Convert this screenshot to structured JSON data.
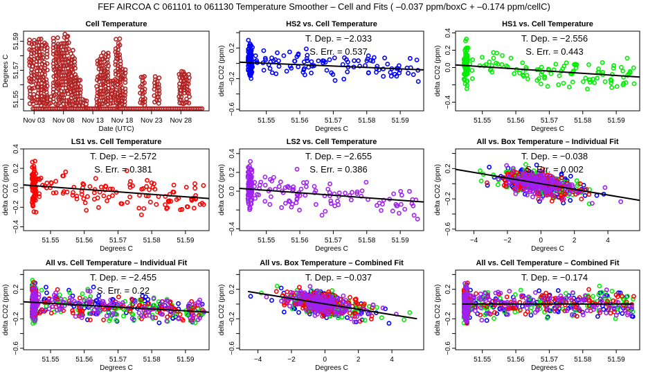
{
  "figure_title": "FEF   AIRCOA C   061101 to 061130   Temperature Smoother – Cell and Fits ( –0.037  ppm/boxC +  –0.174  ppm/cellC)",
  "colors": {
    "cell_temp": "#b22222",
    "HS2": "#0000ff",
    "HS1": "#00ee00",
    "LS1": "#ff0000",
    "LS2": "#a020f0",
    "fit_line": "#000000"
  },
  "chart_data": [
    {
      "id": "cell-temperature",
      "type": "scatter",
      "title": "Cell Temperature",
      "xlabel": "Date (UTC)",
      "ylabel": "Degrees C",
      "x_tick_labels": [
        "Nov 03",
        "Nov 08",
        "Nov 13",
        "Nov 18",
        "Nov 23",
        "Nov 28"
      ],
      "x_ticks_day": [
        3,
        8,
        13,
        18,
        23,
        28
      ],
      "xlim_day": [
        1.2,
        32.8
      ],
      "y_ticks": [
        51.55,
        51.56,
        51.57,
        51.58,
        51.59
      ],
      "y_tick_labels": [
        "51.55",
        "",
        "51.57",
        "",
        "51.59"
      ],
      "ylim": [
        51.542,
        51.597
      ],
      "series": [
        {
          "name": "Cell Temperature",
          "color_key": "cell_temp",
          "segments_day_ymax": [
            [
              2.6,
              51.5915
            ],
            [
              3.8,
              51.5935
            ],
            [
              4.8,
              51.589
            ],
            [
              5.5,
              51.553
            ],
            [
              6.7,
              51.5925
            ],
            [
              7.6,
              51.5905
            ],
            [
              8.5,
              51.595
            ],
            [
              9.6,
              51.584
            ],
            [
              10.5,
              51.5675
            ],
            [
              11.6,
              51.55
            ],
            [
              14.1,
              51.58
            ],
            [
              15.2,
              51.583
            ],
            [
              16.4,
              51.564
            ],
            [
              17.3,
              51.5925
            ],
            [
              18.1,
              51.5715
            ],
            [
              21.5,
              51.5665
            ],
            [
              23.9,
              51.5665
            ],
            [
              28.1,
              51.571
            ],
            [
              29.0,
              51.5675
            ]
          ],
          "baseline": 51.5435
        }
      ]
    },
    {
      "id": "hs2-vs-cell",
      "type": "scatter",
      "title": "HS2 vs. Cell Temperature",
      "xlabel": "Degrees C",
      "ylabel": "delta CO2 (ppm)",
      "x_ticks": [
        51.55,
        51.56,
        51.57,
        51.58,
        51.59
      ],
      "x_tick_labels": [
        "51.55",
        "51.56",
        "51.57",
        "51.58",
        "51.59"
      ],
      "xlim": [
        51.542,
        51.597
      ],
      "y_ticks": [
        -0.6,
        -0.4,
        -0.2,
        0.0,
        0.2,
        0.4
      ],
      "y_tick_labels": [
        "−0.6",
        "",
        "−0.2",
        "",
        "0.2",
        ""
      ],
      "ylim": [
        -0.62,
        0.42
      ],
      "series": [
        {
          "name": "HS2",
          "color_key": "HS2"
        }
      ],
      "fit": {
        "slope": -2.033,
        "line": [
          [
            51.542,
            0.015
          ],
          [
            51.597,
            -0.085
          ]
        ]
      },
      "annotations": [
        "T. Dep. =  −2.033",
        "S. Err. =  0.537"
      ]
    },
    {
      "id": "hs1-vs-cell",
      "type": "scatter",
      "title": "HS1 vs. Cell Temperature",
      "xlabel": "Degrees C",
      "ylabel": "delta CO2 (ppm)",
      "x_ticks": [
        51.55,
        51.56,
        51.57,
        51.58,
        51.59
      ],
      "x_tick_labels": [
        "51.55",
        "51.56",
        "51.57",
        "51.58",
        "51.59"
      ],
      "xlim": [
        51.542,
        51.597
      ],
      "y_ticks": [
        -0.4,
        -0.2,
        0.0,
        0.2,
        0.4
      ],
      "y_tick_labels": [
        "−0.4",
        "",
        "0.0",
        "0.2",
        "0.4"
      ],
      "ylim": [
        -0.5,
        0.42
      ],
      "series": [
        {
          "name": "HS1",
          "color_key": "HS1"
        }
      ],
      "fit": {
        "slope": -2.556,
        "line": [
          [
            51.542,
            0.03
          ],
          [
            51.597,
            -0.11
          ]
        ]
      },
      "annotations": [
        "T. Dep. =  −2.556",
        "S. Err. =  0.443"
      ]
    },
    {
      "id": "ls1-vs-cell",
      "type": "scatter",
      "title": "LS1 vs. Cell Temperature",
      "xlabel": "Degrees C",
      "ylabel": "delta CO2 (ppm)",
      "x_ticks": [
        51.55,
        51.56,
        51.57,
        51.58,
        51.59
      ],
      "x_tick_labels": [
        "51.55",
        "51.56",
        "51.57",
        "51.58",
        "51.59"
      ],
      "xlim": [
        51.542,
        51.597
      ],
      "y_ticks": [
        -0.4,
        -0.2,
        0.0,
        0.2,
        0.4
      ],
      "y_tick_labels": [
        "−0.4",
        "−0.2",
        "0.0",
        "0.2",
        "0.4"
      ],
      "ylim": [
        -0.44,
        0.4
      ],
      "series": [
        {
          "name": "LS1",
          "color_key": "LS1"
        }
      ],
      "fit": {
        "slope": -2.572,
        "line": [
          [
            51.542,
            0.03
          ],
          [
            51.597,
            -0.11
          ]
        ]
      },
      "annotations": [
        "T. Dep. =  −2.572",
        "S. Err. =  0.381"
      ]
    },
    {
      "id": "ls2-vs-cell",
      "type": "scatter",
      "title": "LS2 vs. Cell Temperature",
      "xlabel": "Degrees C",
      "ylabel": "delta CO2 (ppm)",
      "x_ticks": [
        51.55,
        51.56,
        51.57,
        51.58,
        51.59
      ],
      "x_tick_labels": [
        "51.55",
        "51.56",
        "51.57",
        "51.58",
        "51.59"
      ],
      "xlim": [
        51.542,
        51.597
      ],
      "y_ticks": [
        -0.4,
        -0.2,
        0.0,
        0.2,
        0.4
      ],
      "y_tick_labels": [
        "−0.4",
        "",
        "0.0",
        "0.2",
        "0.4"
      ],
      "ylim": [
        -0.42,
        0.45
      ],
      "series": [
        {
          "name": "LS2",
          "color_key": "LS2"
        }
      ],
      "fit": {
        "slope": -2.655,
        "line": [
          [
            51.542,
            0.03
          ],
          [
            51.597,
            -0.115
          ]
        ]
      },
      "annotations": [
        "T. Dep. =  −2.655",
        "S. Err. =  0.386"
      ]
    },
    {
      "id": "all-vs-box-individual",
      "type": "scatter",
      "title": "All vs. Box Temperature – Individual Fit",
      "xlabel": "Degrees C",
      "ylabel": "delta CO2 (ppm)",
      "x_ticks": [
        -4,
        -2,
        0,
        2,
        4
      ],
      "x_tick_labels": [
        "−4",
        "−2",
        "0",
        "2",
        "4"
      ],
      "xlim": [
        -5.1,
        5.9
      ],
      "y_ticks": [
        -0.6,
        -0.4,
        -0.2,
        0.0,
        0.2,
        0.4
      ],
      "y_tick_labels": [
        "−0.6",
        "",
        "−0.2",
        "",
        "0.2",
        ""
      ],
      "ylim": [
        -0.62,
        0.46
      ],
      "series": [
        {
          "name": "HS2",
          "color_key": "HS2"
        },
        {
          "name": "HS1",
          "color_key": "HS1"
        },
        {
          "name": "LS1",
          "color_key": "LS1"
        },
        {
          "name": "LS2",
          "color_key": "LS2"
        }
      ],
      "fit": {
        "slope": -0.038,
        "line": [
          [
            -5.1,
            0.19
          ],
          [
            5.9,
            -0.22
          ]
        ]
      },
      "annotations": [
        "T. Dep. =  −0.038",
        "S. Err. =  0.002"
      ]
    },
    {
      "id": "all-vs-cell-individual",
      "type": "scatter",
      "title": "All vs. Cell Temperature – Individual Fit",
      "xlabel": "Degrees C",
      "ylabel": "delta CO2 (ppm)",
      "x_ticks": [
        51.55,
        51.56,
        51.57,
        51.58,
        51.59
      ],
      "x_tick_labels": [
        "51.55",
        "51.56",
        "51.57",
        "51.58",
        "51.59"
      ],
      "xlim": [
        51.542,
        51.597
      ],
      "y_ticks": [
        -0.6,
        -0.4,
        -0.2,
        0.0,
        0.2,
        0.4
      ],
      "y_tick_labels": [
        "−0.6",
        "",
        "−0.2",
        "",
        "0.2",
        ""
      ],
      "ylim": [
        -0.62,
        0.46
      ],
      "series": [
        {
          "name": "HS2",
          "color_key": "HS2"
        },
        {
          "name": "HS1",
          "color_key": "HS1"
        },
        {
          "name": "LS1",
          "color_key": "LS1"
        },
        {
          "name": "LS2",
          "color_key": "LS2"
        }
      ],
      "fit": {
        "slope": -2.455,
        "line": [
          [
            51.542,
            0.03
          ],
          [
            51.597,
            -0.11
          ]
        ]
      },
      "annotations": [
        "T. Dep. =  −2.455",
        "S. Err. =  0.22"
      ]
    },
    {
      "id": "all-vs-box-combined",
      "type": "scatter",
      "title": "All vs. Box Temperature – Combined Fit",
      "xlabel": "Degrees C",
      "ylabel": "delta CO2 (ppm)",
      "x_ticks": [
        -4,
        -2,
        0,
        2,
        4
      ],
      "x_tick_labels": [
        "−4",
        "−2",
        "0",
        "2",
        "4"
      ],
      "xlim": [
        -5.1,
        5.9
      ],
      "y_ticks": [
        -0.6,
        -0.4,
        -0.2,
        0.0,
        0.2,
        0.4
      ],
      "y_tick_labels": [
        "−0.6",
        "",
        "−0.2",
        "",
        "0.2",
        ""
      ],
      "ylim": [
        -0.62,
        0.46
      ],
      "series": [
        {
          "name": "HS2",
          "color_key": "HS2"
        },
        {
          "name": "HS1",
          "color_key": "HS1"
        },
        {
          "name": "LS1",
          "color_key": "LS1"
        },
        {
          "name": "LS2",
          "color_key": "LS2"
        }
      ],
      "fit": {
        "slope": -0.037,
        "line": [
          [
            -4.6,
            0.17
          ],
          [
            5.5,
            -0.2
          ]
        ]
      },
      "annotations": [
        "T. Dep. =  −0.037"
      ]
    },
    {
      "id": "all-vs-cell-combined",
      "type": "scatter",
      "title": "All vs. Cell Temperature – Combined Fit",
      "xlabel": "Degrees C",
      "ylabel": "delta CO2 (ppm)",
      "x_ticks": [
        51.55,
        51.56,
        51.57,
        51.58,
        51.59
      ],
      "x_tick_labels": [
        "51.55",
        "51.56",
        "51.57",
        "51.58",
        "51.59"
      ],
      "xlim": [
        51.542,
        51.597
      ],
      "y_ticks": [
        -0.6,
        -0.4,
        -0.2,
        0.0,
        0.2,
        0.4
      ],
      "y_tick_labels": [
        "−0.6",
        "",
        "−0.2",
        "",
        "0.2",
        ""
      ],
      "ylim": [
        -0.62,
        0.46
      ],
      "series": [
        {
          "name": "HS2",
          "color_key": "HS2"
        },
        {
          "name": "HS1",
          "color_key": "HS1"
        },
        {
          "name": "LS1",
          "color_key": "LS1"
        },
        {
          "name": "LS2",
          "color_key": "LS2"
        }
      ],
      "fit": {
        "slope": -0.174,
        "line": [
          [
            51.544,
            0.0
          ],
          [
            51.595,
            0.0
          ]
        ]
      },
      "annotations": [
        "T. Dep. =  −0.174"
      ]
    }
  ]
}
